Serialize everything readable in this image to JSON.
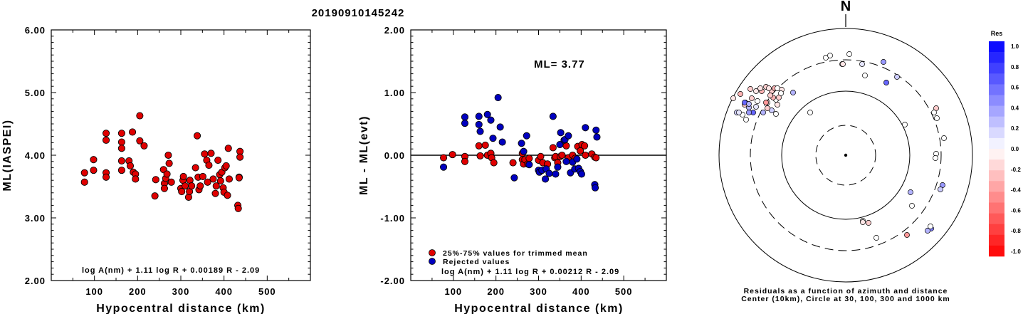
{
  "event_id": "20190910145242",
  "chart_data": [
    {
      "type": "scatter",
      "xlabel": "Hypocentral distance (km)",
      "ylabel": "ML(IASPEI)",
      "xlim": [
        0,
        600
      ],
      "ylim": [
        2.0,
        6.0
      ],
      "xticks": [
        100,
        200,
        300,
        400,
        500
      ],
      "yticks": [
        "2.00",
        "3.00",
        "4.00",
        "5.00",
        "6.00"
      ],
      "formula": "log A(nm) + 1.11 log R + 0.00189 R - 2.09",
      "series": [
        {
          "color": "#e00000",
          "points": [
            [
              77,
              3.72
            ],
            [
              77,
              3.57
            ],
            [
              98,
              3.93
            ],
            [
              98,
              3.76
            ],
            [
              127,
              4.35
            ],
            [
              127,
              4.24
            ],
            [
              127,
              3.72
            ],
            [
              127,
              3.65
            ],
            [
              163,
              4.35
            ],
            [
              163,
              4.21
            ],
            [
              163,
              4.11
            ],
            [
              163,
              3.91
            ],
            [
              163,
              3.76
            ],
            [
              180,
              3.91
            ],
            [
              183,
              3.83
            ],
            [
              188,
              4.37
            ],
            [
              190,
              3.73
            ],
            [
              195,
              3.7
            ],
            [
              195,
              3.62
            ],
            [
              205,
              4.63
            ],
            [
              205,
              4.23
            ],
            [
              215,
              4.15
            ],
            [
              240,
              3.35
            ],
            [
              242,
              3.61
            ],
            [
              260,
              3.77
            ],
            [
              262,
              3.55
            ],
            [
              262,
              3.47
            ],
            [
              265,
              3.63
            ],
            [
              268,
              3.7
            ],
            [
              271,
              4.0
            ],
            [
              273,
              3.87
            ],
            [
              278,
              3.57
            ],
            [
              300,
              3.47
            ],
            [
              302,
              3.42
            ],
            [
              305,
              3.6
            ],
            [
              306,
              3.66
            ],
            [
              310,
              3.51
            ],
            [
              318,
              3.33
            ],
            [
              320,
              3.42
            ],
            [
              321,
              3.6
            ],
            [
              325,
              3.51
            ],
            [
              334,
              3.8
            ],
            [
              338,
              4.31
            ],
            [
              340,
              3.65
            ],
            [
              342,
              3.45
            ],
            [
              345,
              3.51
            ],
            [
              351,
              3.66
            ],
            [
              355,
              4.02
            ],
            [
              360,
              3.92
            ],
            [
              362,
              3.57
            ],
            [
              365,
              3.84
            ],
            [
              370,
              4.03
            ],
            [
              375,
              3.62
            ],
            [
              380,
              3.39
            ],
            [
              382,
              3.51
            ],
            [
              386,
              3.92
            ],
            [
              390,
              3.69
            ],
            [
              392,
              3.59
            ],
            [
              395,
              3.73
            ],
            [
              398,
              3.48
            ],
            [
              400,
              3.41
            ],
            [
              402,
              3.8
            ],
            [
              405,
              3.83
            ],
            [
              408,
              3.36
            ],
            [
              410,
              4.11
            ],
            [
              412,
              3.62
            ],
            [
              432,
              3.2
            ],
            [
              433,
              3.15
            ],
            [
              435,
              3.65
            ],
            [
              435,
              3.64
            ],
            [
              437,
              4.06
            ],
            [
              437,
              3.97
            ]
          ]
        }
      ]
    },
    {
      "type": "scatter",
      "xlabel": "Hypocentral distance (km)",
      "ylabel": "ML - ML(evt)",
      "xlim": [
        0,
        600
      ],
      "ylim": [
        -2.0,
        2.0
      ],
      "xticks": [
        100,
        200,
        300,
        400,
        500
      ],
      "yticks": [
        "-2.00",
        "-1.00",
        "0.00",
        "1.00",
        "2.00"
      ],
      "annotation": "ML= 3.77",
      "formula": "log A(nm) + 1.11 log R + 0.00212 R - 2.09",
      "series": [
        {
          "name": "25%-75% values for trimmed mean",
          "color": "#e00000",
          "points": [
            [
              77,
              -0.04
            ],
            [
              98,
              0.01
            ],
            [
              127,
              -0.02
            ],
            [
              127,
              -0.1
            ],
            [
              160,
              0.15
            ],
            [
              163,
              -0.01
            ],
            [
              175,
              0.16
            ],
            [
              180,
              0.0
            ],
            [
              188,
              0.03
            ],
            [
              190,
              -0.04
            ],
            [
              195,
              -0.12
            ],
            [
              240,
              -0.12
            ],
            [
              262,
              0.03
            ],
            [
              262,
              -0.07
            ],
            [
              265,
              -0.14
            ],
            [
              268,
              -0.07
            ],
            [
              275,
              -0.14
            ],
            [
              278,
              -0.05
            ],
            [
              300,
              -0.08
            ],
            [
              305,
              -0.02
            ],
            [
              310,
              -0.12
            ],
            [
              321,
              -0.14
            ],
            [
              334,
              0.12
            ],
            [
              338,
              -0.04
            ],
            [
              340,
              -0.02
            ],
            [
              345,
              -0.12
            ],
            [
              351,
              -0.02
            ],
            [
              355,
              0.0
            ],
            [
              365,
              0.15
            ],
            [
              370,
              -0.04
            ],
            [
              380,
              0.0
            ],
            [
              386,
              -0.05
            ],
            [
              392,
              0.14
            ],
            [
              398,
              0.07
            ],
            [
              402,
              0.17
            ],
            [
              408,
              0.15
            ],
            [
              410,
              0.0
            ],
            [
              425,
              0.02
            ],
            [
              432,
              -0.03
            ],
            [
              435,
              -0.04
            ]
          ]
        },
        {
          "name": "Rejected values",
          "color": "#0000c0",
          "points": [
            [
              77,
              -0.19
            ],
            [
              127,
              0.61
            ],
            [
              127,
              0.51
            ],
            [
              160,
              0.62
            ],
            [
              160,
              0.49
            ],
            [
              163,
              0.38
            ],
            [
              180,
              0.65
            ],
            [
              188,
              0.56
            ],
            [
              193,
              0.27
            ],
            [
              205,
              0.92
            ],
            [
              210,
              0.45
            ],
            [
              215,
              0.21
            ],
            [
              243,
              -0.36
            ],
            [
              260,
              0.19
            ],
            [
              265,
              0.06
            ],
            [
              272,
              0.31
            ],
            [
              278,
              -0.15
            ],
            [
              300,
              -0.24
            ],
            [
              302,
              -0.27
            ],
            [
              308,
              -0.24
            ],
            [
              316,
              -0.38
            ],
            [
              318,
              -0.22
            ],
            [
              325,
              -0.29
            ],
            [
              334,
              0.62
            ],
            [
              340,
              -0.3
            ],
            [
              345,
              -0.19
            ],
            [
              350,
              0.17
            ],
            [
              352,
              0.36
            ],
            [
              360,
              0.24
            ],
            [
              362,
              0.25
            ],
            [
              365,
              -0.1
            ],
            [
              370,
              0.31
            ],
            [
              375,
              -0.28
            ],
            [
              380,
              -0.11
            ],
            [
              385,
              -0.22
            ],
            [
              390,
              -0.06
            ],
            [
              394,
              -0.21
            ],
            [
              398,
              -0.26
            ],
            [
              401,
              -0.3
            ],
            [
              410,
              0.44
            ],
            [
              432,
              -0.47
            ],
            [
              433,
              -0.52
            ],
            [
              435,
              0.4
            ],
            [
              437,
              0.29
            ]
          ]
        }
      ]
    }
  ],
  "azimuth_plot": {
    "north_label": "N",
    "caption_line1": "Residuals as a function of azimuth and distance",
    "caption_line2": "Center (10km), Circle at 30, 100, 300 and 1000 km",
    "stations": [
      [
        -140,
        -50,
        0.0
      ],
      [
        -145,
        -57,
        0.0
      ],
      [
        -141,
        -74,
        0.7
      ],
      [
        -153,
        -60,
        0.2
      ],
      [
        -158,
        -80,
        -0.1
      ],
      [
        -148,
        -86,
        -0.3
      ],
      [
        -142,
        -71,
        -0.2
      ],
      [
        -132,
        -80,
        -0.2
      ],
      [
        -126,
        -90,
        -0.1
      ],
      [
        -134,
        -93,
        -0.2
      ],
      [
        -124,
        -76,
        0.0
      ],
      [
        -118,
        -90,
        -0.3
      ],
      [
        -120,
        -94,
        -0.1
      ],
      [
        -112,
        -96,
        -0.2
      ],
      [
        -104,
        -90,
        -0.2
      ],
      [
        -108,
        -94,
        -0.1
      ],
      [
        -100,
        -94,
        -0.3
      ],
      [
        -96,
        -94,
        0.0
      ],
      [
        -90,
        -92,
        -0.1
      ],
      [
        -130,
        -60,
        0.6
      ],
      [
        -136,
        -67,
        0.3
      ],
      [
        -126,
        -68,
        0.1
      ],
      [
        -116,
        -60,
        0.3
      ],
      [
        -104,
        -63,
        0.2
      ],
      [
        -98,
        -58,
        0.0
      ],
      [
        -110,
        -74,
        -0.1
      ],
      [
        -96,
        -71,
        -0.1
      ],
      [
        -98,
        -78,
        0.0
      ],
      [
        -102,
        -81,
        -0.3
      ],
      [
        -106,
        -84,
        -0.2
      ],
      [
        -94,
        -81,
        -0.2
      ],
      [
        -91,
        -87,
        0.0
      ],
      [
        -74,
        -88,
        0.3
      ],
      [
        -50,
        -60,
        0.0
      ],
      [
        -28,
        -137,
        0.0
      ],
      [
        -22,
        -140,
        0.0
      ],
      [
        5,
        -142,
        0.0
      ],
      [
        -5,
        -128,
        -0.1
      ],
      [
        -4,
        -128,
        -0.1
      ],
      [
        23,
        -128,
        0.1
      ],
      [
        27,
        -112,
        0.0
      ],
      [
        53,
        -131,
        0.4
      ],
      [
        57,
        -102,
        0.6
      ],
      [
        72,
        -110,
        0.2
      ],
      [
        83,
        -43,
        0.0
      ],
      [
        127,
        -66,
        -0.2
      ],
      [
        124,
        -60,
        0.0
      ],
      [
        128,
        -52,
        0.0
      ],
      [
        138,
        -24,
        0.0
      ],
      [
        127,
        -2,
        0.0
      ],
      [
        126,
        4,
        0.0
      ],
      [
        136,
        42,
        0.4
      ],
      [
        133,
        48,
        0.2
      ],
      [
        91,
        52,
        0.3
      ],
      [
        93,
        71,
        0.0
      ],
      [
        120,
        103,
        0.5
      ],
      [
        115,
        106,
        0.3
      ],
      [
        119,
        100,
        0.0
      ],
      [
        24,
        92,
        0.0
      ],
      [
        24,
        94,
        -0.1
      ],
      [
        32,
        95,
        -0.2
      ],
      [
        43,
        116,
        0.0
      ],
      [
        86,
        112,
        -0.4
      ],
      [
        -142,
        -74,
        0.6
      ],
      [
        -136,
        -72,
        0.3
      ],
      [
        -136,
        -60,
        0.4
      ],
      [
        -150,
        -60,
        0.1
      ],
      [
        -110,
        -66,
        -0.2
      ],
      [
        -112,
        -74,
        -0.4
      ]
    ]
  },
  "colorbar": {
    "title": "Res",
    "tick_labels": [
      "1.0",
      "0.8",
      "0.6",
      "0.4",
      "0.2",
      "0.0",
      "-0.2",
      "-0.4",
      "-0.6",
      "-0.8",
      "-1.0"
    ]
  }
}
